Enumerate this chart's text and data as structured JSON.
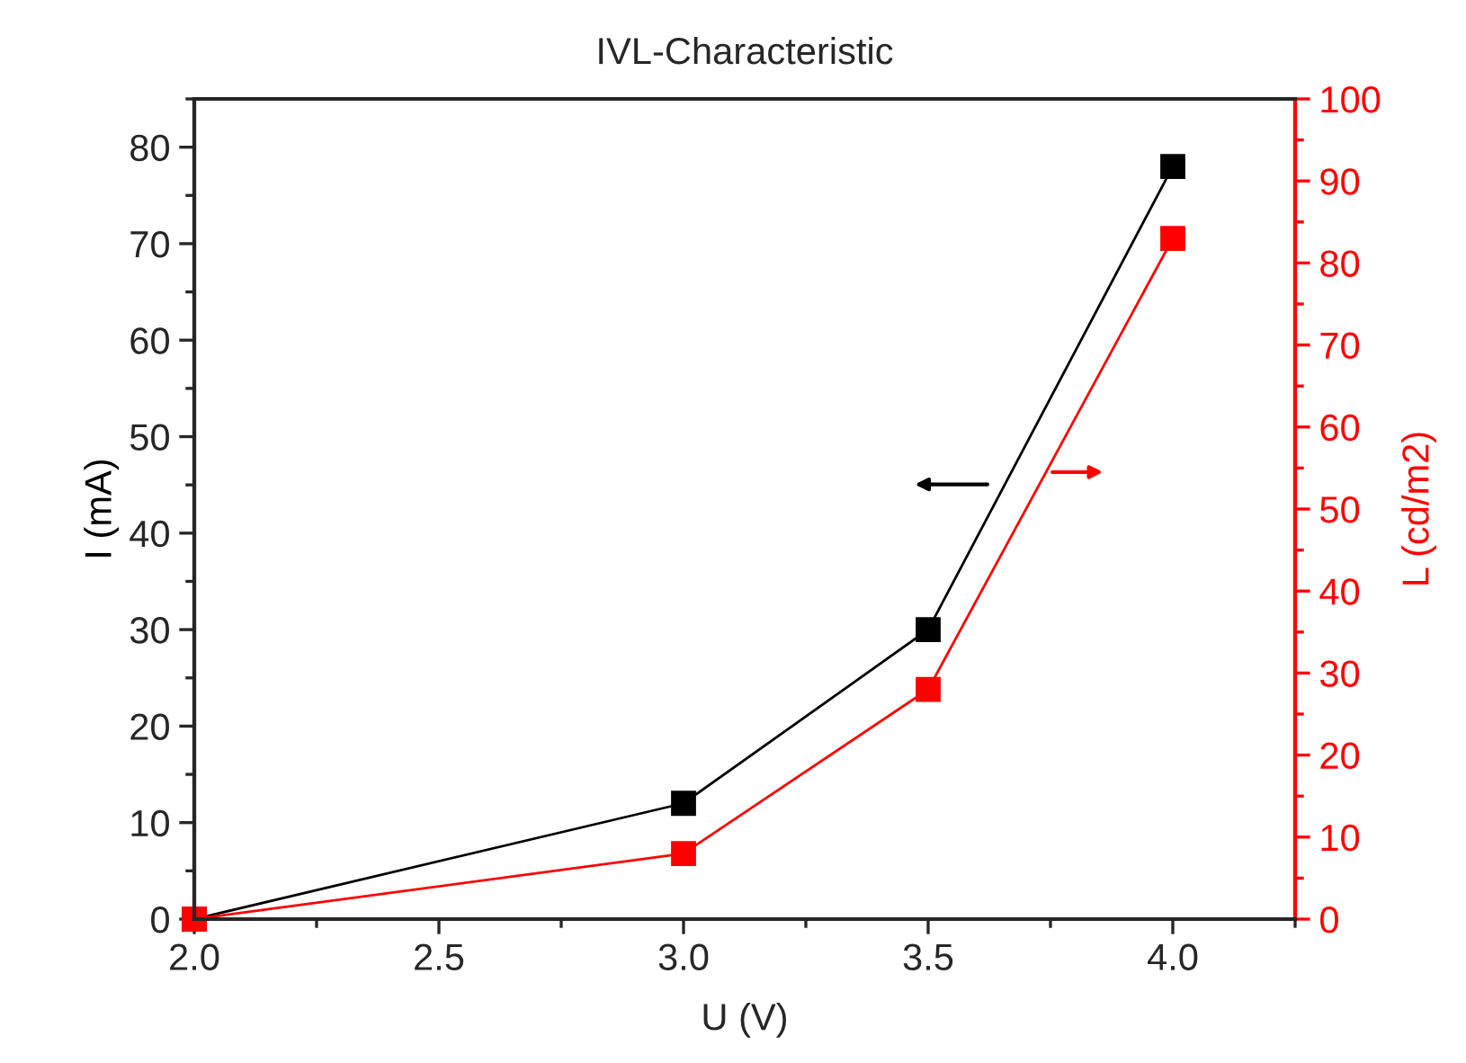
{
  "chart_data": {
    "type": "line",
    "title": "IVL-Characteristic",
    "xlabel": "U (V)",
    "ylabel": "I (mA)",
    "y2label": "L (cd/m2)",
    "x": [
      2.0,
      3.0,
      3.5,
      4.0
    ],
    "series": [
      {
        "color": "#000000",
        "values": [
          0,
          12,
          30,
          78
        ]
      },
      {
        "color": "#ff0000",
        "values": [
          0,
          8,
          28,
          83
        ],
        "axis": "y2"
      }
    ],
    "xlim": [
      2.0,
      4.25
    ],
    "xticks": [
      {
        "value": 2.0,
        "label": "2.0"
      },
      {
        "value": 2.5,
        "label": "2.5"
      },
      {
        "value": 3.0,
        "label": "3.0"
      },
      {
        "value": 3.5,
        "label": "3.5"
      },
      {
        "value": 4.0,
        "label": "4.0"
      }
    ],
    "ylim": [
      0,
      85
    ],
    "yticks": [
      0,
      10,
      20,
      30,
      40,
      50,
      60,
      70,
      80
    ],
    "y2lim": [
      0,
      100
    ],
    "y2ticks": [
      0,
      10,
      20,
      30,
      40,
      50,
      60,
      70,
      80,
      90,
      100
    ],
    "marker": "square",
    "line_style": "solid",
    "grid": false,
    "legend": false
  }
}
